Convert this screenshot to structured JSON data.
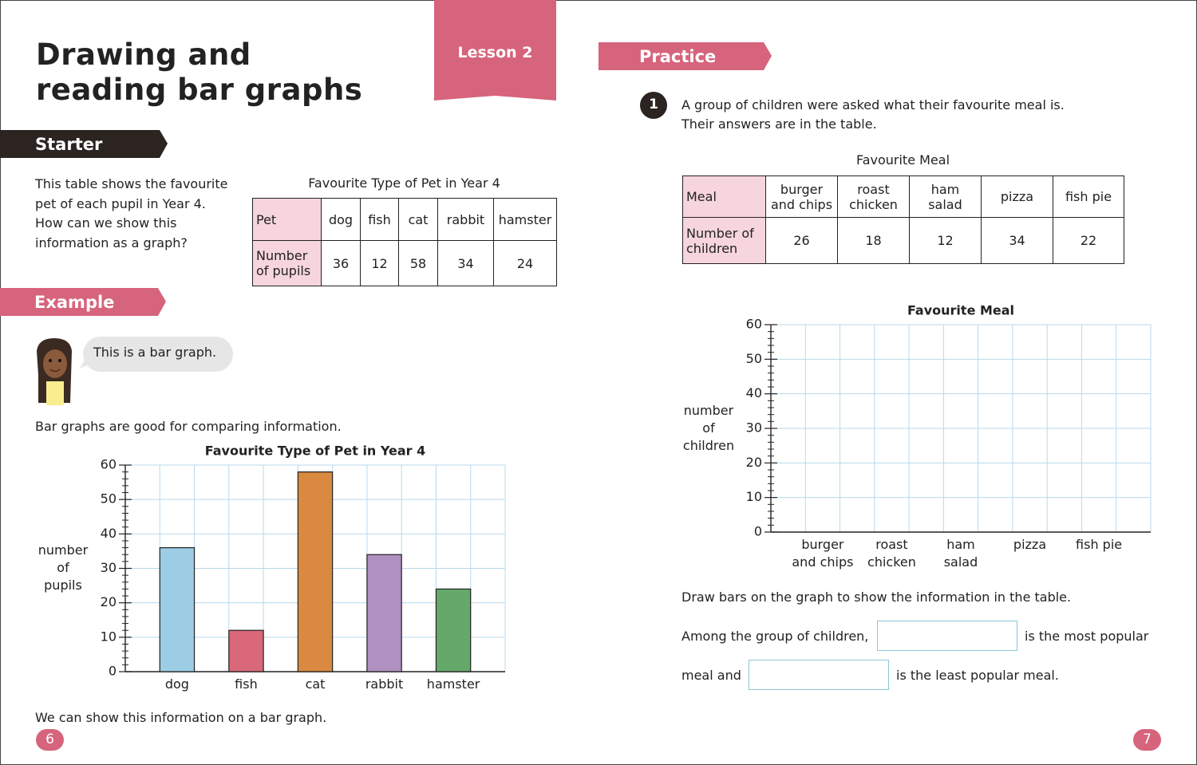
{
  "header": {
    "title": "Drawing and reading bar graphs",
    "lesson": "Lesson 2"
  },
  "starter": {
    "heading": "Starter",
    "text": "This table shows the favourite pet of each pupil in Year 4. How can we show this information as a graph?",
    "table": {
      "title": "Favourite Type of Pet in Year 4",
      "rows": [
        [
          "Pet",
          "dog",
          "fish",
          "cat",
          "rabbit",
          "hamster"
        ],
        [
          "Number of pupils",
          36,
          12,
          58,
          34,
          24
        ]
      ]
    }
  },
  "example": {
    "heading": "Example",
    "speech": "This is a bar graph.",
    "intro": "Bar graphs are good for comparing information.",
    "outro": "We can show this information on a bar graph."
  },
  "practice": {
    "heading": "Practice",
    "question_number": 1,
    "text": [
      "A group of children were asked what their favourite meal is.",
      "Their answers are in the table."
    ],
    "table": {
      "title": "Favourite Meal",
      "rows": [
        [
          "Meal",
          "burger and chips",
          "roast chicken",
          "ham salad",
          "pizza",
          "fish pie"
        ],
        [
          "Number of children",
          26,
          18,
          12,
          34,
          22
        ]
      ]
    },
    "instruction": "Draw bars on the graph to show the information in the table.",
    "sentence": [
      "Among the group of children,",
      "is the most popular",
      "meal and",
      "is the least popular meal."
    ]
  },
  "page_numbers": [
    6,
    7
  ],
  "chart_data": [
    {
      "type": "bar",
      "title": "Favourite Type of Pet in Year 4",
      "y_label": "number of pupils",
      "categories": [
        "dog",
        "fish",
        "cat",
        "rabbit",
        "hamster"
      ],
      "values": [
        36,
        12,
        58,
        34,
        24
      ],
      "colors": [
        "#9ccde4",
        "#d8687a",
        "#d98a40",
        "#b090c0",
        "#64a86a"
      ],
      "ylim": [
        0,
        60
      ],
      "yticks": [
        0,
        10,
        20,
        30,
        40,
        50,
        60
      ],
      "grid": true
    },
    {
      "type": "bar",
      "title": "Favourite Meal",
      "y_label": "number of children",
      "categories": [
        "burger and chips",
        "roast chicken",
        "ham salad",
        "pizza",
        "fish pie"
      ],
      "ylim": [
        0,
        60
      ],
      "yticks": [
        0,
        10,
        20,
        30,
        40,
        50,
        60
      ],
      "grid": true
    }
  ]
}
